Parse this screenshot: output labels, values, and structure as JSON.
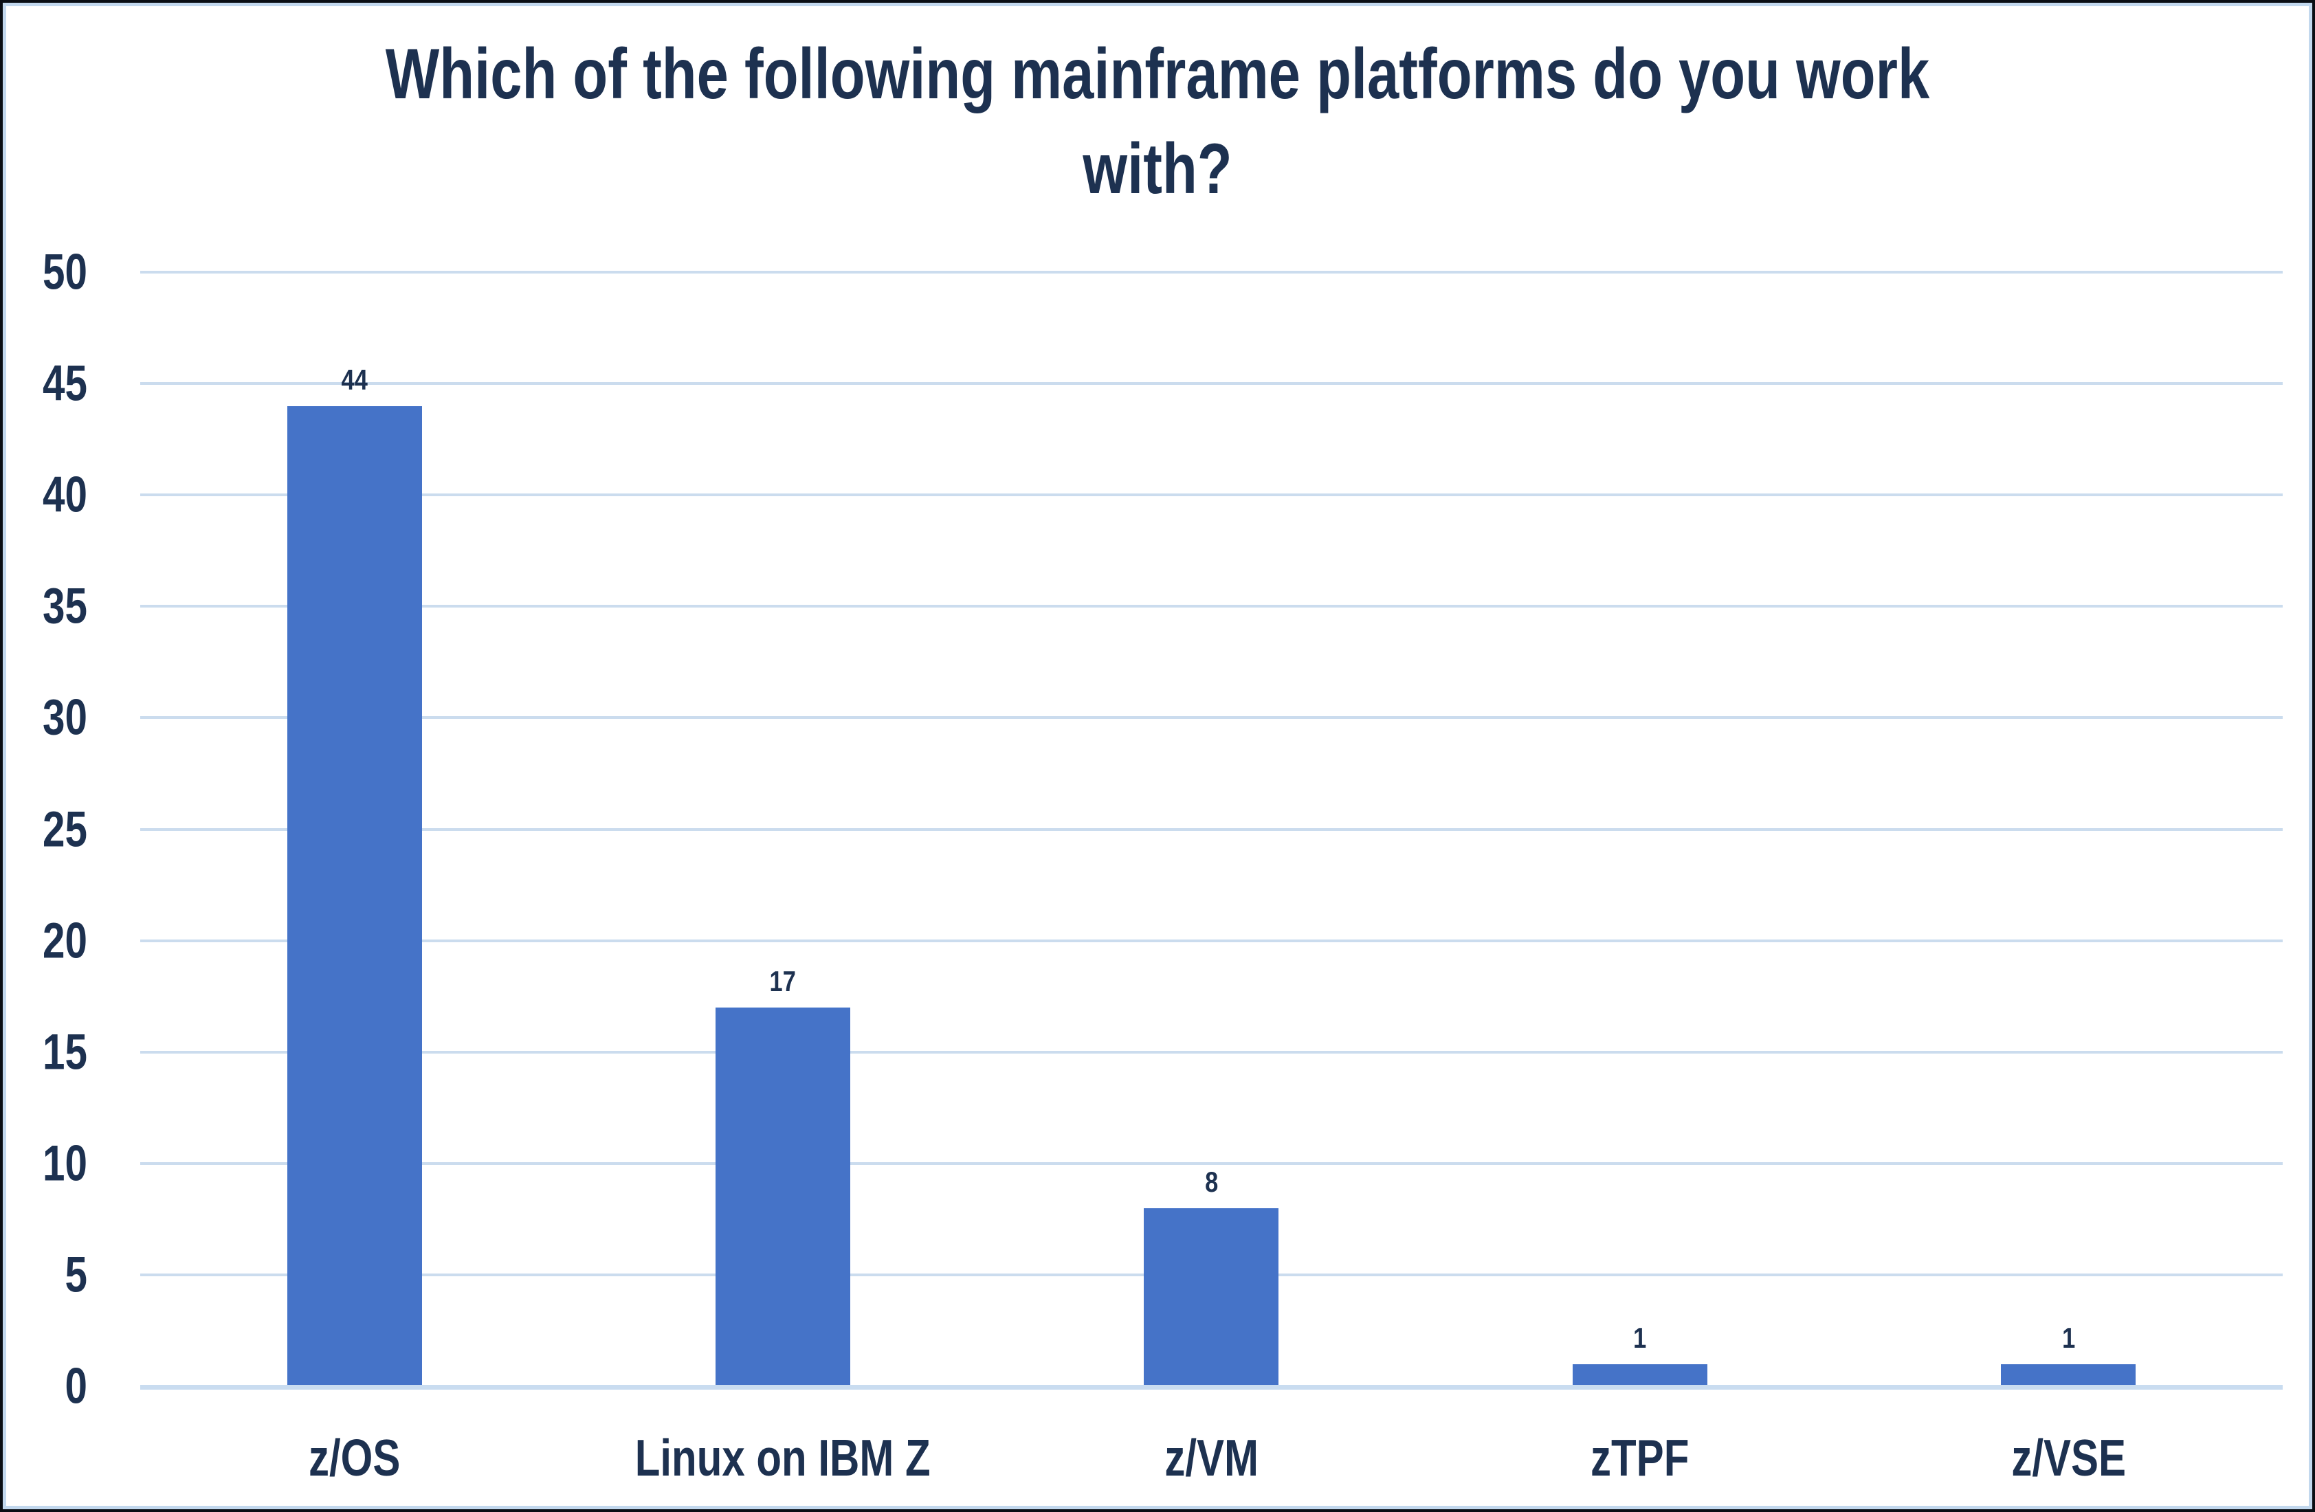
{
  "title_lines": [
    "Which of the following mainframe platforms do you work",
    "with?"
  ],
  "colors": {
    "bar": "#4573c8",
    "text": "#1d3150",
    "gridline": "#cbdcee",
    "axis_line": "#c9dcf0",
    "frame_outer_border": "#0a0e14",
    "frame_inner_border": "#c2d8ee",
    "background": "#ffffff"
  },
  "chart_data": {
    "type": "bar",
    "title": "Which of the following mainframe platforms do you work with?",
    "categories": [
      "z/OS",
      "Linux on IBM Z",
      "z/VM",
      "zTPF",
      "z/VSE"
    ],
    "values": [
      44,
      17,
      8,
      1,
      1
    ],
    "data_labels": [
      "44",
      "17",
      "8",
      "1",
      "1"
    ],
    "xlabel": "",
    "ylabel": "",
    "ylim": [
      0,
      50
    ],
    "ytick_step": 5,
    "yticks": [
      "0",
      "5",
      "10",
      "15",
      "20",
      "25",
      "30",
      "35",
      "40",
      "45",
      "50"
    ],
    "grid": "horizontal",
    "legend": "none",
    "orientation": "vertical"
  }
}
